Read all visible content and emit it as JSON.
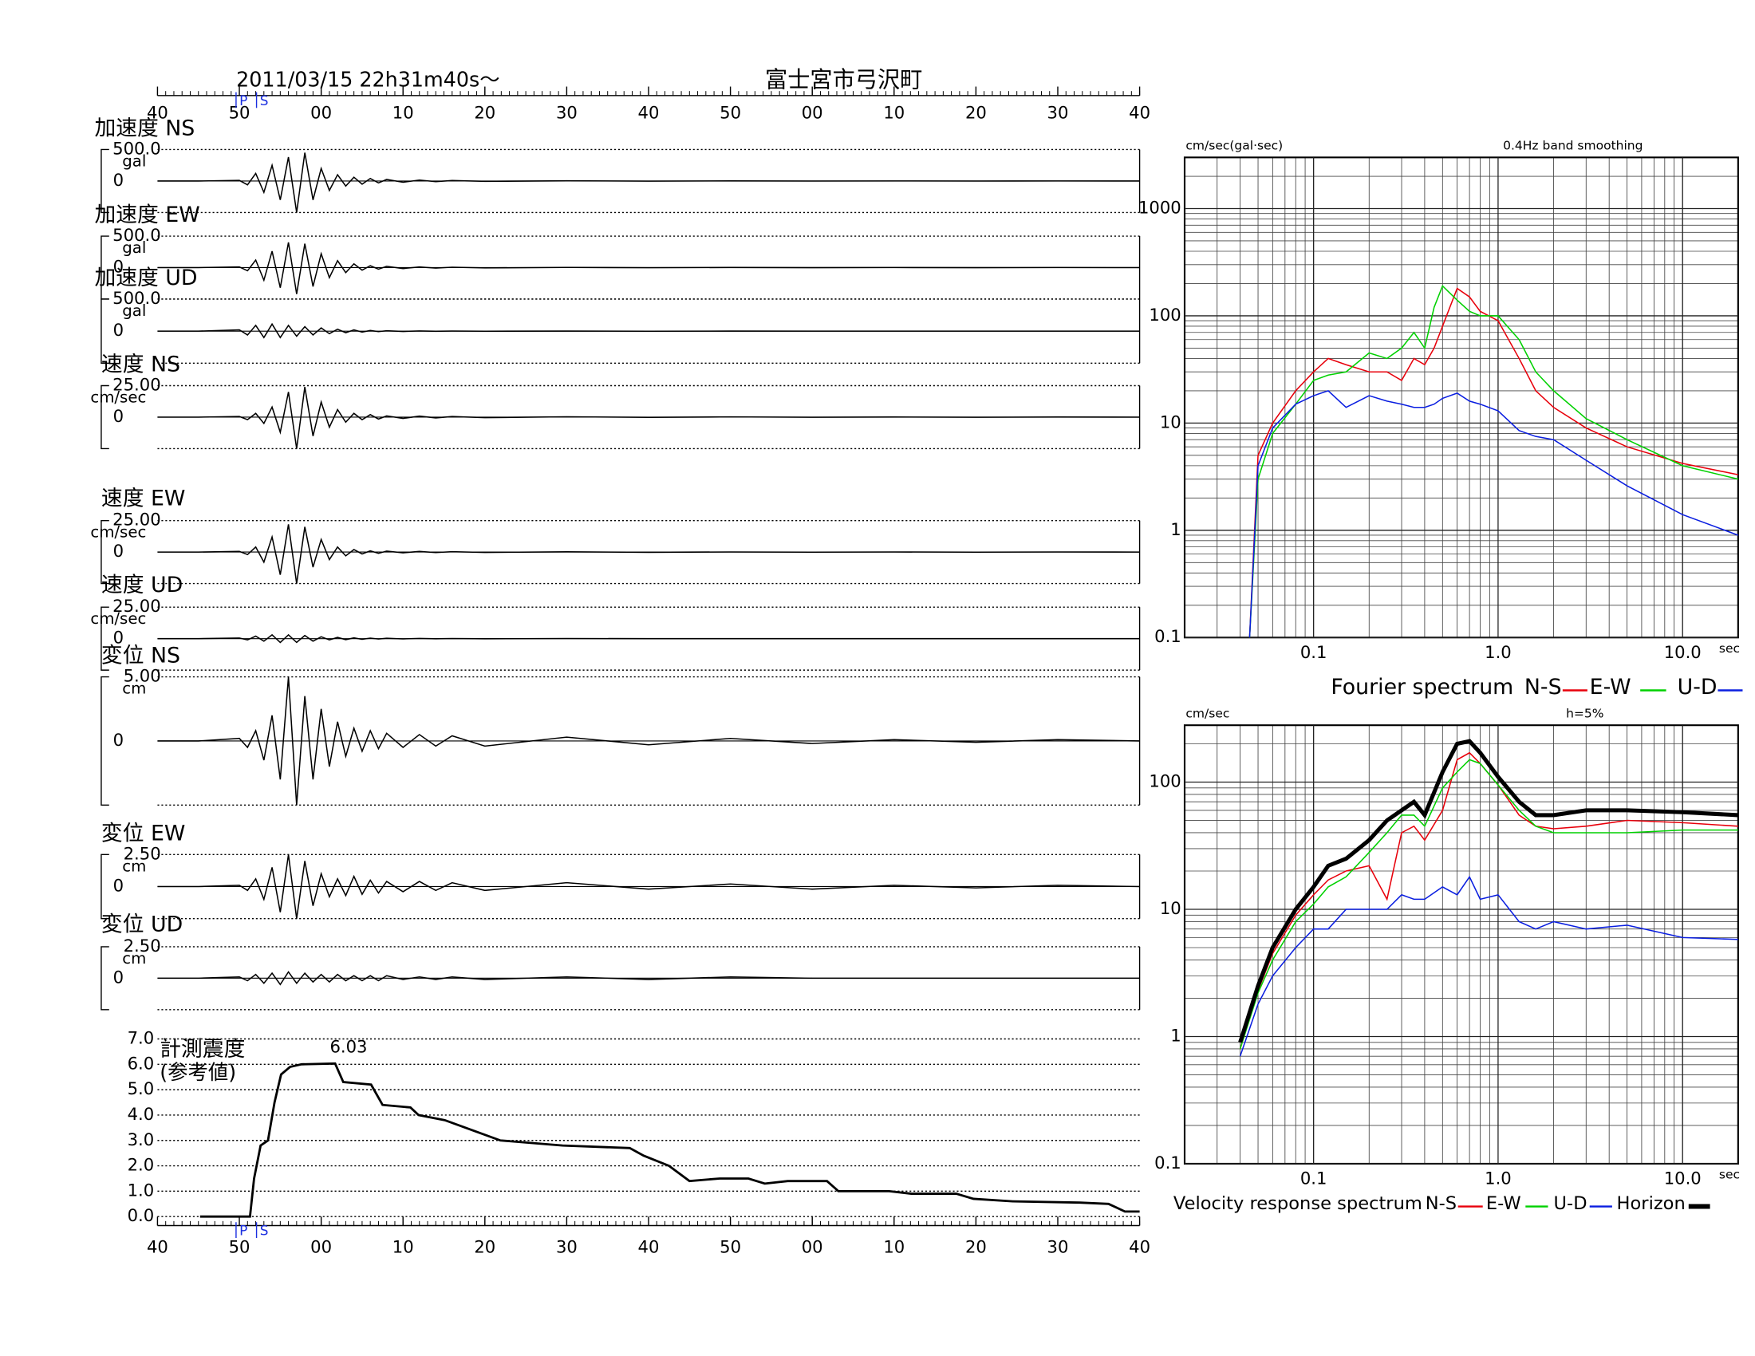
{
  "chart_data": [
    {
      "type": "waveform",
      "title": "2011/03/15  22h31m40s～",
      "subtitle": "富士宮市弓沢町",
      "color": "#000000",
      "xlim": [
        0,
        120
      ],
      "xticks": [
        {
          "value": 0,
          "label": "40"
        },
        {
          "value": 10,
          "label": "50"
        },
        {
          "value": 20,
          "label": "00"
        },
        {
          "value": 30,
          "label": "10"
        },
        {
          "value": 40,
          "label": "20"
        },
        {
          "value": 50,
          "label": "30"
        },
        {
          "value": 60,
          "label": "40"
        },
        {
          "value": 70,
          "label": "50"
        },
        {
          "value": 80,
          "label": "00"
        },
        {
          "value": 90,
          "label": "10"
        },
        {
          "value": 100,
          "label": "20"
        },
        {
          "value": 110,
          "label": "30"
        },
        {
          "value": 120,
          "label": "40"
        }
      ],
      "phases": [
        {
          "label": "P",
          "x": 9.6
        },
        {
          "label": "S",
          "x": 12.1
        }
      ],
      "x": [
        0,
        5,
        10,
        11,
        12,
        13,
        14,
        15,
        16,
        17,
        18,
        19,
        20,
        21,
        22,
        23,
        24,
        25,
        26,
        27,
        28,
        30,
        32,
        34,
        36,
        40,
        50,
        60,
        70,
        80,
        90,
        100,
        110,
        120
      ],
      "panels": [
        {
          "name": "加速度 NS",
          "unit": "gal",
          "ylim": [
            -500,
            500
          ],
          "yticks": [
            0,
            {
              "value": 500,
              "label": "500.0"
            }
          ],
          "values": [
            0,
            0,
            10,
            -60,
            120,
            -180,
            250,
            -300,
            380,
            -500,
            450,
            -300,
            200,
            -150,
            100,
            -80,
            60,
            -50,
            40,
            -30,
            25,
            -20,
            15,
            -10,
            8,
            -5,
            3,
            -2,
            2,
            -1,
            1,
            -1,
            1,
            0
          ]
        },
        {
          "name": "加速度 EW",
          "unit": "gal",
          "ylim": [
            -500,
            500
          ],
          "yticks": [
            0,
            {
              "value": 500,
              "label": "500.0"
            }
          ],
          "values": [
            0,
            0,
            10,
            -50,
            120,
            -200,
            260,
            -320,
            400,
            -420,
            380,
            -300,
            220,
            -160,
            110,
            -80,
            60,
            -40,
            30,
            -25,
            20,
            -15,
            10,
            -8,
            6,
            -5,
            3,
            -2,
            2,
            -1,
            1,
            -1,
            1,
            0
          ]
        },
        {
          "name": "加速度 UD",
          "unit": "gal",
          "ylim": [
            -500,
            500
          ],
          "yticks": [
            0,
            {
              "value": 500,
              "label": "500.0"
            }
          ],
          "values": [
            0,
            0,
            20,
            -60,
            90,
            -100,
            110,
            -100,
            90,
            -80,
            70,
            -60,
            50,
            -40,
            30,
            -25,
            20,
            -15,
            10,
            -8,
            6,
            -5,
            3,
            -2,
            2,
            -1,
            1,
            -1,
            1,
            0,
            0,
            0,
            0,
            0
          ]
        },
        {
          "name": "速度 NS",
          "unit": "cm/sec",
          "ylim": [
            -25,
            25
          ],
          "yticks": [
            0,
            {
              "value": 25,
              "label": "25.00"
            }
          ],
          "values": [
            0,
            0,
            0.5,
            -2,
            3,
            -5,
            8,
            -12,
            20,
            -25,
            24,
            -15,
            12,
            -8,
            6,
            -4,
            3,
            -2,
            2,
            -1.5,
            1,
            -1,
            0.8,
            -0.6,
            0.5,
            -0.4,
            0.3,
            -0.2,
            0.2,
            -0.1,
            0.1,
            -0.1,
            0.1,
            0
          ]
        },
        {
          "name": "速度 EW",
          "unit": "cm/sec",
          "ylim": [
            -25,
            25
          ],
          "yticks": [
            0,
            {
              "value": 25,
              "label": "25.00"
            }
          ],
          "values": [
            0,
            0,
            0.5,
            -2,
            4,
            -8,
            12,
            -18,
            22,
            -25,
            20,
            -12,
            10,
            -6,
            4,
            -3,
            2,
            -1.5,
            1,
            -1,
            0.8,
            -0.6,
            0.5,
            -0.4,
            0.3,
            -0.3,
            0.2,
            -0.2,
            0.1,
            -0.1,
            0.1,
            -0.1,
            0.1,
            0
          ]
        },
        {
          "name": "速度 UD",
          "unit": "cm/sec",
          "ylim": [
            -25,
            25
          ],
          "yticks": [
            0,
            {
              "value": 25,
              "label": "25.00"
            }
          ],
          "values": [
            0,
            0,
            0.5,
            -1,
            2,
            -2,
            3,
            -3,
            3,
            -3,
            2.5,
            -2,
            1.5,
            -1,
            1,
            -0.8,
            0.6,
            -0.5,
            0.4,
            -0.3,
            0.3,
            -0.2,
            0.2,
            -0.1,
            0.1,
            -0.1,
            0.1,
            0,
            0,
            0,
            0,
            0,
            0,
            0
          ]
        },
        {
          "name": "変位 NS",
          "unit": "cm",
          "ylim": [
            -5,
            5
          ],
          "yticks": [
            0,
            {
              "value": 5,
              "label": "5.00"
            }
          ],
          "values": [
            0,
            0,
            0.2,
            -0.5,
            0.8,
            -1.5,
            2,
            -3,
            5,
            -5,
            3.5,
            -3,
            2.5,
            -2,
            1.5,
            -1.2,
            1,
            -0.8,
            0.8,
            -0.6,
            0.6,
            -0.5,
            0.5,
            -0.4,
            0.4,
            -0.4,
            0.3,
            -0.3,
            0.2,
            -0.2,
            0.1,
            -0.1,
            0.1,
            0
          ]
        },
        {
          "name": "変位 EW",
          "unit": "cm",
          "ylim": [
            -2.5,
            2.5
          ],
          "yticks": [
            0,
            {
              "value": 2.5,
              "label": "2.50"
            }
          ],
          "values": [
            0,
            0,
            0.1,
            -0.3,
            0.6,
            -1,
            1.5,
            -2,
            2.5,
            -2.5,
            2,
            -1.5,
            1,
            -0.8,
            0.6,
            -0.7,
            0.8,
            -0.6,
            0.5,
            -0.5,
            0.4,
            -0.4,
            0.4,
            -0.3,
            0.3,
            -0.3,
            0.3,
            -0.2,
            0.2,
            -0.2,
            0.1,
            -0.1,
            0.1,
            0
          ]
        },
        {
          "name": "変位 UD",
          "unit": "cm",
          "ylim": [
            -2.5,
            2.5
          ],
          "yticks": [
            0,
            {
              "value": 2.5,
              "label": "2.50"
            }
          ],
          "values": [
            0,
            0,
            0.1,
            -0.2,
            0.3,
            -0.4,
            0.4,
            -0.5,
            0.5,
            -0.4,
            0.4,
            -0.3,
            0.3,
            -0.3,
            0.3,
            -0.2,
            0.2,
            -0.2,
            0.2,
            -0.2,
            0.2,
            -0.1,
            0.1,
            -0.1,
            0.1,
            -0.1,
            0.1,
            -0.1,
            0.1,
            0,
            0,
            0,
            0,
            0
          ]
        }
      ]
    },
    {
      "type": "step",
      "title": "計測震度",
      "subtitle": "(参考値)",
      "color": "#000000",
      "grid": true,
      "ylim": [
        0,
        7
      ],
      "yticks": [
        {
          "value": 0,
          "label": "0.0"
        },
        {
          "value": 1,
          "label": "1.0"
        },
        {
          "value": 2,
          "label": "2.0"
        },
        {
          "value": 3,
          "label": "3.0"
        },
        {
          "value": 4,
          "label": "4.0"
        },
        {
          "value": 5,
          "label": "5.0"
        },
        {
          "value": 6,
          "label": "6.0"
        },
        {
          "value": 7,
          "label": "7.0"
        }
      ],
      "x": [
        5.2,
        11.3,
        11.8,
        12.6,
        13.5,
        14.3,
        15.1,
        16.2,
        17.6,
        21.7,
        22.7,
        26.1,
        27.5,
        30.9,
        31.9,
        35.1,
        38.5,
        41.9,
        49.5,
        57.7,
        59.4,
        62.5,
        65.0,
        68.7,
        72.2,
        74.2,
        77.0,
        81.8,
        83.2,
        89.4,
        92.1,
        97.6,
        99.7,
        104.5,
        112.7,
        116.2,
        118.2,
        120
      ],
      "values": [
        0,
        0,
        1.5,
        2.8,
        3.0,
        4.5,
        5.6,
        5.9,
        6.0,
        6.03,
        5.3,
        5.2,
        4.4,
        4.3,
        4.0,
        3.8,
        3.4,
        3.0,
        2.8,
        2.7,
        2.4,
        2.0,
        1.4,
        1.5,
        1.5,
        1.3,
        1.4,
        1.4,
        1.0,
        1.0,
        0.9,
        0.9,
        0.7,
        0.6,
        0.55,
        0.5,
        0.2,
        0.2
      ]
    },
    {
      "type": "line",
      "log": true,
      "grid": true,
      "title": "Fourier spectrum",
      "y_label": "cm/sec(gal·sec)",
      "note": "0.4Hz band smoothing",
      "x_unit": "sec",
      "xlim": [
        0.02,
        20
      ],
      "ylim": [
        0.1,
        3000
      ],
      "xticks": [
        0.1,
        {
          "value": 1,
          "label": "1.0"
        },
        {
          "value": 10,
          "label": "10.0"
        }
      ],
      "yticks": [
        0.1,
        1,
        10,
        100,
        1000
      ],
      "x": [
        0.045,
        0.05,
        0.06,
        0.08,
        0.1,
        0.12,
        0.15,
        0.2,
        0.25,
        0.3,
        0.35,
        0.4,
        0.45,
        0.5,
        0.6,
        0.7,
        0.8,
        1.0,
        1.3,
        1.6,
        2,
        3,
        5,
        10,
        20
      ],
      "series": [
        {
          "name": "N-S",
          "color": "#e8000b",
          "values": [
            0.1,
            5,
            10,
            20,
            30,
            40,
            35,
            30,
            30,
            25,
            40,
            35,
            50,
            80,
            180,
            150,
            110,
            90,
            40,
            20,
            14,
            9,
            6,
            4.2,
            3.3
          ]
        },
        {
          "name": "E-W",
          "color": "#00d100",
          "values": [
            0.1,
            3,
            8,
            15,
            25,
            28,
            30,
            45,
            40,
            50,
            70,
            50,
            120,
            190,
            140,
            110,
            100,
            100,
            60,
            30,
            20,
            11,
            7,
            4,
            3
          ]
        },
        {
          "name": "U-D",
          "color": "#0a1ee0",
          "values": [
            0.1,
            4,
            9,
            15,
            18,
            20,
            14,
            18,
            16,
            15,
            14,
            14,
            15,
            17,
            19,
            16,
            15,
            13,
            8.5,
            7.5,
            7,
            4.5,
            2.6,
            1.4,
            0.9
          ]
        }
      ]
    },
    {
      "type": "line",
      "log": true,
      "grid": true,
      "title": "Velocity response spectrum",
      "y_label": "cm/sec",
      "note": "h=5%",
      "x_unit": "sec",
      "xlim": [
        0.02,
        20
      ],
      "ylim": [
        0.1,
        280
      ],
      "xticks": [
        0.1,
        {
          "value": 1,
          "label": "1.0"
        },
        {
          "value": 10,
          "label": "10.0"
        }
      ],
      "yticks": [
        0.1,
        1,
        10,
        100
      ],
      "x": [
        0.04,
        0.05,
        0.06,
        0.08,
        0.1,
        0.12,
        0.15,
        0.2,
        0.25,
        0.3,
        0.35,
        0.4,
        0.5,
        0.6,
        0.7,
        0.8,
        1.0,
        1.3,
        1.6,
        2,
        3,
        5,
        10,
        20
      ],
      "series": [
        {
          "name": "N-S",
          "color": "#e8000b",
          "values": [
            0.8,
            2.3,
            4.5,
            9,
            13,
            17,
            20,
            22,
            12,
            40,
            45,
            35,
            60,
            150,
            170,
            140,
            95,
            55,
            45,
            43,
            45,
            50,
            48,
            45
          ]
        },
        {
          "name": "E-W",
          "color": "#00d100",
          "values": [
            0.8,
            2.2,
            4,
            8,
            11,
            15,
            18,
            28,
            40,
            55,
            55,
            45,
            90,
            120,
            150,
            140,
            95,
            60,
            45,
            40,
            40,
            40,
            42,
            42
          ]
        },
        {
          "name": "U-D",
          "color": "#0a1ee0",
          "values": [
            0.7,
            1.8,
            3,
            5,
            7,
            7,
            10,
            10,
            10,
            13,
            12,
            12,
            15,
            13,
            18,
            12,
            13,
            8,
            7,
            8,
            7,
            7.5,
            6,
            5.8
          ]
        },
        {
          "name": "Horizon",
          "color": "#000000",
          "values": [
            0.9,
            2.5,
            5,
            10,
            15,
            22,
            25,
            35,
            50,
            60,
            70,
            55,
            120,
            200,
            210,
            170,
            110,
            70,
            55,
            55,
            60,
            60,
            58,
            55
          ]
        }
      ]
    }
  ]
}
